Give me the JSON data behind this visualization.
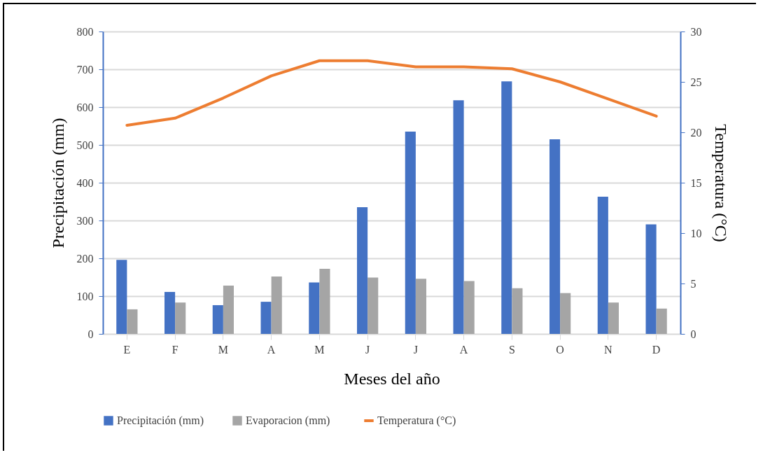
{
  "chart_data": {
    "type": "bar",
    "xlabel": "Meses del año",
    "ylabel": "Precipitación (mm)",
    "y2label": "Temperatura (°C)",
    "categories": [
      "E",
      "F",
      "M",
      "A",
      "M",
      "J",
      "J",
      "A",
      "S",
      "O",
      "N",
      "D"
    ],
    "series": [
      {
        "name": "Precipitación (mm)",
        "color": "#4472c4",
        "values": [
          196,
          111,
          76,
          85,
          136,
          335,
          535,
          618,
          668,
          515,
          363,
          290
        ]
      },
      {
        "name": "Evaporacion (mm)",
        "color": "#a5a5a5",
        "values": [
          65,
          83,
          128,
          152,
          172,
          149,
          146,
          140,
          121,
          108,
          83,
          67
        ]
      },
      {
        "name": "Temperatura (°C)",
        "type": "line",
        "axis": "y2",
        "color": "#ed7d31",
        "values": [
          20.7,
          21.4,
          23.4,
          25.6,
          27.1,
          27.1,
          26.5,
          26.5,
          26.3,
          25.0,
          23.3,
          21.6
        ]
      }
    ],
    "ylim": [
      0,
      800
    ],
    "yticks": [
      0,
      100,
      200,
      300,
      400,
      500,
      600,
      700,
      800
    ],
    "y2lim": [
      0,
      30
    ],
    "y2ticks": [
      0,
      5,
      10,
      15,
      20,
      25,
      30
    ],
    "grid": "y",
    "legend": "bottom"
  }
}
